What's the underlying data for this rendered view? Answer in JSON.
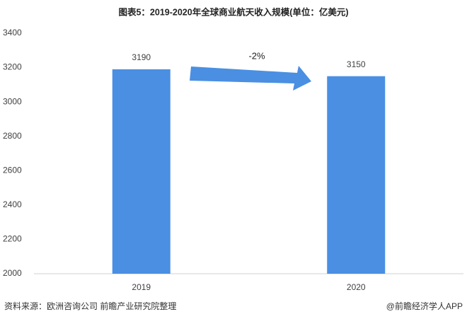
{
  "chart_data": {
    "type": "bar",
    "title": "图表5：2019-2020年全球商业航天收入规模(单位：亿美元)",
    "categories": [
      "2019",
      "2020"
    ],
    "values": [
      3190,
      3150
    ],
    "color": "#4a8fe2",
    "ylim": [
      2000,
      3400
    ],
    "yticks": [
      2000,
      2200,
      2400,
      2600,
      2800,
      3000,
      3200,
      3400
    ],
    "grid": false,
    "annotation": "-2%",
    "source": "资料来源：欧洲咨询公司 前瞻产业研究院整理",
    "credit": "@前瞻经济学人APP"
  }
}
